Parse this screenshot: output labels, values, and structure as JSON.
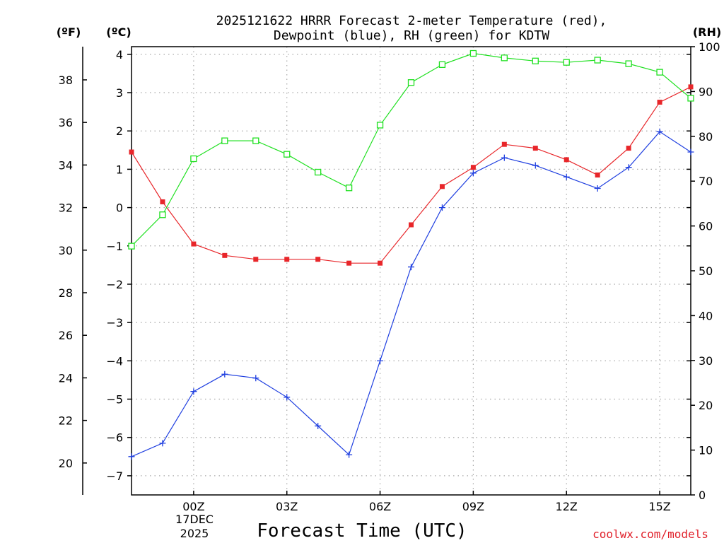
{
  "chart_data": {
    "type": "line",
    "title_line1": "2025121622 HRRR Forecast 2-meter Temperature (red),",
    "title_line2": "Dewpoint (blue), RH (green) for KDTW",
    "xlabel": "Forecast Time (UTC)",
    "credit": "coolwx.com/models",
    "date_label_line1": "17DEC",
    "date_label_line2": "2025",
    "units": {
      "fahrenheit": "(ºF)",
      "celsius": "(ºC)",
      "rh": "(RH)"
    },
    "x_hours": [
      22,
      23,
      24,
      25,
      26,
      27,
      28,
      29,
      30,
      31,
      32,
      33,
      34,
      35,
      36,
      37,
      38,
      39,
      40
    ],
    "x_ticks": [
      {
        "hour": 24,
        "label": "00Z"
      },
      {
        "hour": 27,
        "label": "03Z"
      },
      {
        "hour": 30,
        "label": "06Z"
      },
      {
        "hour": 33,
        "label": "09Z"
      },
      {
        "hour": 36,
        "label": "12Z"
      },
      {
        "hour": 39,
        "label": "15Z"
      }
    ],
    "xlim": [
      22,
      40
    ],
    "celsius_ylim": [
      -7.5,
      4.2
    ],
    "celsius_ticks": [
      4,
      3,
      2,
      1,
      0,
      -1,
      -2,
      -3,
      -4,
      -5,
      -6,
      -7
    ],
    "fahrenheit_ticks": [
      38,
      36,
      34,
      32,
      30,
      28,
      26,
      24,
      22,
      20
    ],
    "rh_ylim": [
      0,
      100
    ],
    "rh_ticks": [
      100,
      90,
      80,
      70,
      60,
      50,
      40,
      30,
      20,
      10,
      0
    ],
    "grid": true,
    "series": [
      {
        "name": "Temperature",
        "axis": "celsius",
        "color": "#e8262a",
        "marker": "filled-square",
        "values": [
          1.45,
          0.15,
          -0.95,
          -1.25,
          -1.35,
          -1.35,
          -1.35,
          -1.45,
          -1.45,
          -0.45,
          0.55,
          1.05,
          1.65,
          1.55,
          1.25,
          0.85,
          1.55,
          2.75,
          3.15
        ]
      },
      {
        "name": "Dewpoint",
        "axis": "celsius",
        "color": "#1f3fe0",
        "marker": "plus",
        "values": [
          -6.5,
          -6.15,
          -4.8,
          -4.35,
          -4.45,
          -4.95,
          -5.7,
          -6.45,
          -4.0,
          -1.55,
          0.0,
          0.9,
          1.3,
          1.1,
          0.8,
          0.5,
          1.05,
          1.98,
          1.45
        ]
      },
      {
        "name": "RH",
        "axis": "rh",
        "color": "#1fe020",
        "marker": "open-square",
        "values": [
          55.5,
          62.5,
          75,
          79,
          79,
          76,
          72,
          68.5,
          82.5,
          92,
          96,
          98.5,
          97.5,
          96.8,
          96.5,
          97,
          96.2,
          94.3,
          88.5
        ]
      }
    ]
  }
}
